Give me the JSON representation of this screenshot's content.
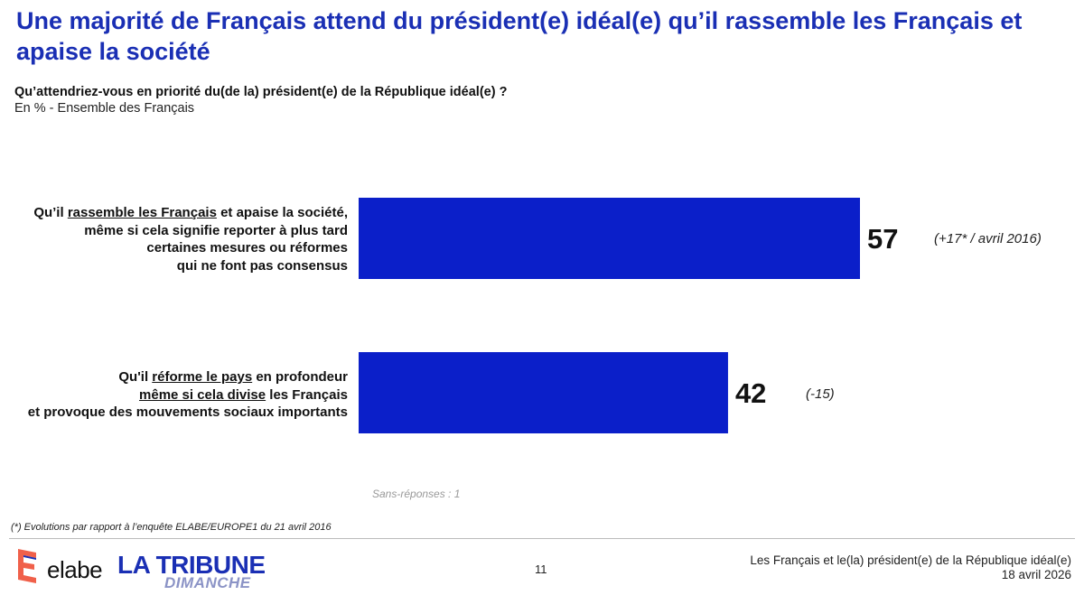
{
  "header": {
    "title": "Une majorité de Français attend du président(e) idéal(e) qu’il rassemble les Français et apaise la société",
    "question": "Qu’attendriez-vous en priorité du(de la) président(e) de la République idéal(e) ?",
    "subtitle": "En % - Ensemble des Français"
  },
  "chart_data": {
    "type": "bar",
    "orientation": "horizontal",
    "xlim": [
      0,
      100
    ],
    "grid": false,
    "categories": [
      "Qu’il rassemble les Français et apaise la société, même si cela signifie reporter à plus tard certaines mesures ou réformes qui ne font pas consensus",
      "Qu’il réforme le pays en profondeur même si cela divise les Français et provoque des mouvements sociaux importants"
    ],
    "values": [
      57,
      42
    ],
    "value_labels": [
      "57",
      "42"
    ],
    "evolutions": [
      "(+17* / avril 2016)",
      "(-15)"
    ],
    "bar_color": "#0b1fc9"
  },
  "labels": {
    "cat1": {
      "pre": "Qu’il ",
      "underline": "rassemble les Français",
      "post": " et apaise la société,",
      "line2": "même si cela signifie reporter à plus tard",
      "line3": "certaines mesures ou réformes",
      "line4": "qui ne font pas consensus"
    },
    "cat2": {
      "pre": "Qu'il ",
      "underline1": "réforme le pays",
      "post1": " en profondeur",
      "underline2": "même si cela divise",
      "post2": " les Français",
      "line3": "et provoque des mouvements sociaux importants"
    }
  },
  "notes": {
    "no_answer": "Sans-réponses : 1",
    "footnote": "(*) Evolutions par rapport à l’enquête ELABE/EUROPE1 du 21 avril 2016"
  },
  "footer": {
    "logo_elabe": "elabe",
    "logo_tribune": "LA TRIBUNE",
    "logo_tribune_sub": "DIMANCHE",
    "page_number": "11",
    "study_title": "Les Français et le(la) président(e) de la République idéal(e)",
    "study_date": "18 avril 2026"
  },
  "colors": {
    "title": "#1a2fb4",
    "bar": "#0b1fc9",
    "elabe_mark": "#f0604a",
    "tribune": "#1a2fb4",
    "tribune_sub": "#8b93c6"
  }
}
